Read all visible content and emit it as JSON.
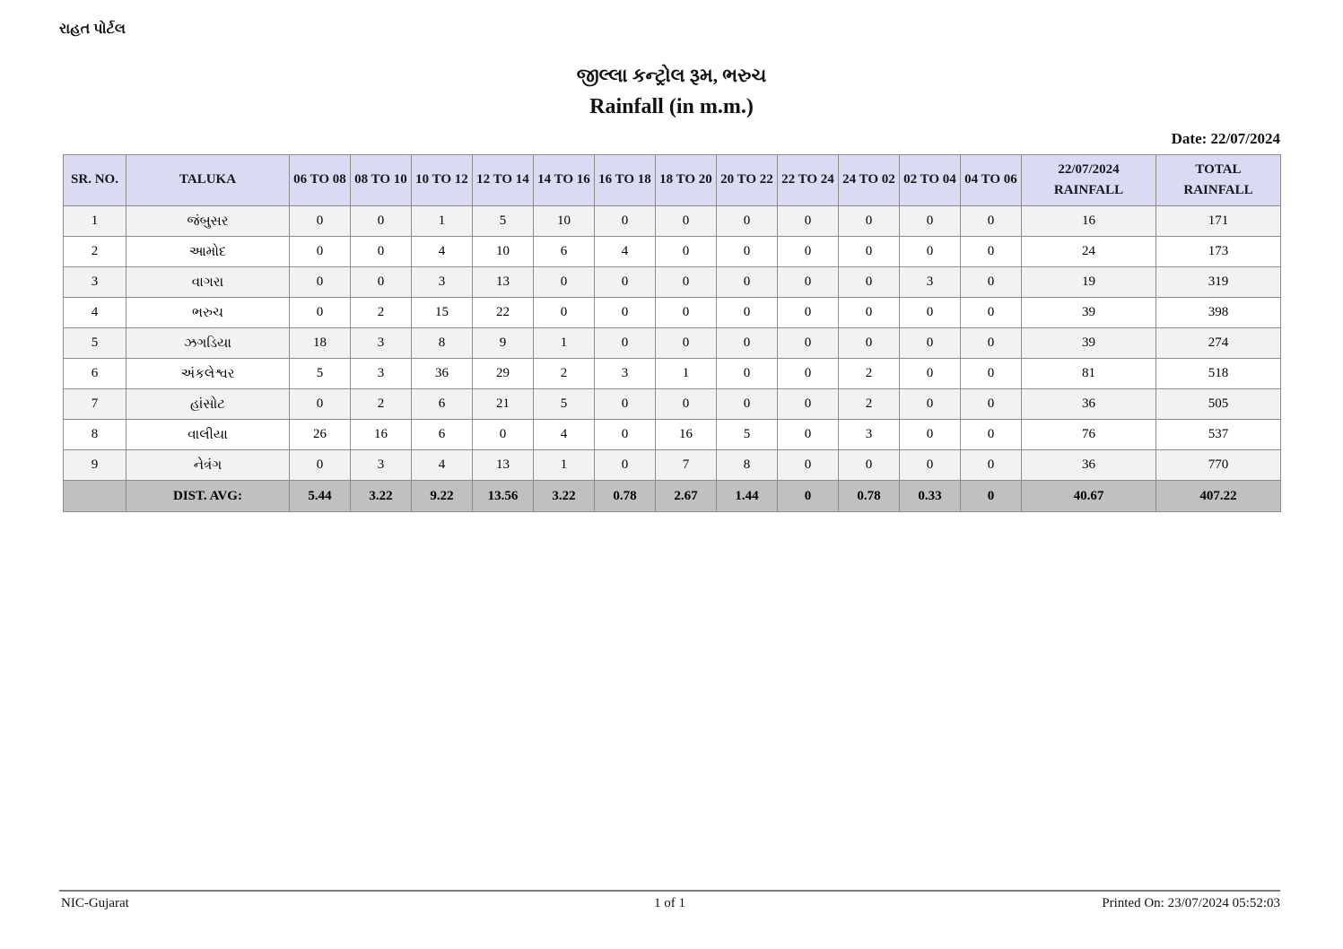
{
  "page": {
    "portal_label": "રાહત પોર્ટલ",
    "title": "જીલ્લા કન્ટ્રોલ રૂમ, ભરુચ",
    "subtitle": "Rainfall (in m.m.)",
    "date_label": "Date: 22/07/2024"
  },
  "table": {
    "headers": [
      "SR. NO.",
      "TALUKA",
      "06 TO 08",
      "08 TO 10",
      "10 TO 12",
      "12 TO 14",
      "14 TO 16",
      "16 TO 18",
      "18 TO 20",
      "20 TO 22",
      "22 TO 24",
      "24 TO 02",
      "02 TO 04",
      "04 TO 06",
      "22/07/2024 RAINFALL",
      "TOTAL RAINFALL"
    ],
    "rows": [
      {
        "sr": "1",
        "taluka": "જંબુસર",
        "values": [
          "0",
          "0",
          "1",
          "5",
          "10",
          "0",
          "0",
          "0",
          "0",
          "0",
          "0",
          "0",
          "16",
          "171"
        ]
      },
      {
        "sr": "2",
        "taluka": "આમોદ",
        "values": [
          "0",
          "0",
          "4",
          "10",
          "6",
          "4",
          "0",
          "0",
          "0",
          "0",
          "0",
          "0",
          "24",
          "173"
        ]
      },
      {
        "sr": "3",
        "taluka": "વાગરા",
        "values": [
          "0",
          "0",
          "3",
          "13",
          "0",
          "0",
          "0",
          "0",
          "0",
          "0",
          "3",
          "0",
          "19",
          "319"
        ]
      },
      {
        "sr": "4",
        "taluka": "ભરુચ",
        "values": [
          "0",
          "2",
          "15",
          "22",
          "0",
          "0",
          "0",
          "0",
          "0",
          "0",
          "0",
          "0",
          "39",
          "398"
        ]
      },
      {
        "sr": "5",
        "taluka": "ઝગડિયા",
        "values": [
          "18",
          "3",
          "8",
          "9",
          "1",
          "0",
          "0",
          "0",
          "0",
          "0",
          "0",
          "0",
          "39",
          "274"
        ]
      },
      {
        "sr": "6",
        "taluka": "અંકલેશ્વર",
        "values": [
          "5",
          "3",
          "36",
          "29",
          "2",
          "3",
          "1",
          "0",
          "0",
          "2",
          "0",
          "0",
          "81",
          "518"
        ]
      },
      {
        "sr": "7",
        "taluka": "હાંસોટ",
        "values": [
          "0",
          "2",
          "6",
          "21",
          "5",
          "0",
          "0",
          "0",
          "0",
          "2",
          "0",
          "0",
          "36",
          "505"
        ]
      },
      {
        "sr": "8",
        "taluka": "વાલીયા",
        "values": [
          "26",
          "16",
          "6",
          "0",
          "4",
          "0",
          "16",
          "5",
          "0",
          "3",
          "0",
          "0",
          "76",
          "537"
        ]
      },
      {
        "sr": "9",
        "taluka": "નેત્રંગ",
        "values": [
          "0",
          "3",
          "4",
          "13",
          "1",
          "0",
          "7",
          "8",
          "0",
          "0",
          "0",
          "0",
          "36",
          "770"
        ]
      }
    ],
    "avg_row": {
      "sr": "",
      "label": "DIST. AVG:",
      "values": [
        "5.44",
        "3.22",
        "9.22",
        "13.56",
        "3.22",
        "0.78",
        "2.67",
        "1.44",
        "0",
        "0.78",
        "0.33",
        "0",
        "40.67",
        "407.22"
      ]
    }
  },
  "footer": {
    "left": "NIC-Gujarat",
    "center": "1 of 1",
    "right": "Printed On: 23/07/2024 05:52:03"
  },
  "colors": {
    "header_bg": "#dadaf2",
    "row_odd_bg": "#f2f2f2",
    "row_even_bg": "#ffffff",
    "avg_row_bg": "#c0c0c0",
    "border": "#8c8c8c"
  }
}
